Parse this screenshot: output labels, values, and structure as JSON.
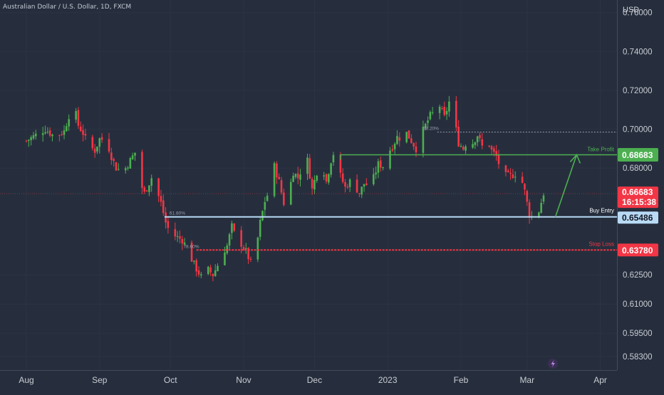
{
  "header": {
    "title": "Australian Dollar / U.S. Dollar, 1D, FXCM",
    "currency": "USD"
  },
  "chart_data": {
    "type": "candlestick",
    "yaxis": {
      "min": 0.576,
      "max": 0.7665,
      "ticks": [
        "0.76000",
        "0.74000",
        "0.72000",
        "0.70000",
        "0.68000",
        "0.62500",
        "0.61000",
        "0.59500",
        "0.58300"
      ]
    },
    "x_axis_labels": [
      {
        "label": "Aug",
        "day": 0
      },
      {
        "label": "Sep",
        "day": 31
      },
      {
        "label": "Oct",
        "day": 61
      },
      {
        "label": "Nov",
        "day": 92
      },
      {
        "label": "Dec",
        "day": 122
      },
      {
        "label": "2023",
        "day": 153
      },
      {
        "label": "Feb",
        "day": 184
      },
      {
        "label": "Mar",
        "day": 212
      },
      {
        "label": "Apr",
        "day": 243
      }
    ],
    "price_key_points": [
      [
        0,
        0.694
      ],
      [
        4,
        0.697
      ],
      [
        8,
        0.7
      ],
      [
        12,
        0.696
      ],
      [
        16,
        0.699
      ],
      [
        18,
        0.707
      ],
      [
        20,
        0.713
      ],
      [
        22,
        0.702
      ],
      [
        24,
        0.698
      ],
      [
        26,
        0.692
      ],
      [
        29,
        0.689
      ],
      [
        31,
        0.695
      ],
      [
        34,
        0.694
      ],
      [
        36,
        0.686
      ],
      [
        38,
        0.68
      ],
      [
        41,
        0.678
      ],
      [
        44,
        0.684
      ],
      [
        46,
        0.688
      ],
      [
        48,
        0.673
      ],
      [
        50,
        0.667
      ],
      [
        53,
        0.675
      ],
      [
        55,
        0.669
      ],
      [
        57,
        0.662
      ],
      [
        59,
        0.652
      ],
      [
        61,
        0.646
      ],
      [
        63,
        0.645
      ],
      [
        66,
        0.643
      ],
      [
        68,
        0.639
      ],
      [
        70,
        0.633
      ],
      [
        72,
        0.628
      ],
      [
        74,
        0.624
      ],
      [
        76,
        0.629
      ],
      [
        79,
        0.625
      ],
      [
        81,
        0.63
      ],
      [
        83,
        0.636
      ],
      [
        85,
        0.64
      ],
      [
        87,
        0.65
      ],
      [
        89,
        0.643
      ],
      [
        91,
        0.641
      ],
      [
        93,
        0.637
      ],
      [
        95,
        0.631
      ],
      [
        98,
        0.644
      ],
      [
        99,
        0.652
      ],
      [
        101,
        0.663
      ],
      [
        103,
        0.669
      ],
      [
        105,
        0.681
      ],
      [
        107,
        0.673
      ],
      [
        109,
        0.662
      ],
      [
        111,
        0.667
      ],
      [
        113,
        0.678
      ],
      [
        115,
        0.675
      ],
      [
        117,
        0.681
      ],
      [
        119,
        0.684
      ],
      [
        121,
        0.669
      ],
      [
        123,
        0.678
      ],
      [
        125,
        0.683
      ],
      [
        127,
        0.673
      ],
      [
        129,
        0.684
      ],
      [
        131,
        0.691
      ],
      [
        133,
        0.676
      ],
      [
        135,
        0.67
      ],
      [
        137,
        0.673
      ],
      [
        139,
        0.671
      ],
      [
        141,
        0.667
      ],
      [
        143,
        0.672
      ],
      [
        145,
        0.671
      ],
      [
        147,
        0.675
      ],
      [
        149,
        0.682
      ],
      [
        151,
        0.681
      ],
      [
        153,
        0.688
      ],
      [
        155,
        0.691
      ],
      [
        157,
        0.696
      ],
      [
        159,
        0.695
      ],
      [
        161,
        0.698
      ],
      [
        163,
        0.694
      ],
      [
        165,
        0.69
      ],
      [
        167,
        0.697
      ],
      [
        169,
        0.702
      ],
      [
        171,
        0.707
      ],
      [
        173,
        0.709
      ],
      [
        175,
        0.712
      ],
      [
        177,
        0.706
      ],
      [
        179,
        0.714
      ],
      [
        181,
        0.706
      ],
      [
        183,
        0.693
      ],
      [
        185,
        0.69
      ],
      [
        187,
        0.695
      ],
      [
        189,
        0.693
      ],
      [
        191,
        0.697
      ],
      [
        193,
        0.691
      ],
      [
        195,
        0.695
      ],
      [
        197,
        0.689
      ],
      [
        199,
        0.686
      ],
      [
        201,
        0.679
      ],
      [
        203,
        0.676
      ],
      [
        205,
        0.676
      ],
      [
        207,
        0.677
      ],
      [
        209,
        0.677
      ],
      [
        211,
        0.668
      ],
      [
        213,
        0.656
      ],
      [
        215,
        0.654
      ],
      [
        217,
        0.658
      ],
      [
        219,
        0.667
      ]
    ],
    "levels": [
      {
        "name": "Take Profit",
        "label": "Take Profit",
        "value": 0.68683,
        "badge": "0.68683",
        "color": "#4caf50"
      },
      {
        "name": "Buy Entry",
        "label": "Buy Entry",
        "value": 0.65486,
        "badge": "0.65486",
        "color": "#b8daf5"
      },
      {
        "name": "Stop Loss",
        "label": "Stop Loss",
        "value": 0.6378,
        "badge": "0.63780",
        "color": "#f23645"
      }
    ],
    "last_price": {
      "value": 0.66683,
      "label": "0.66683",
      "countdown": "16:15:38",
      "color": "#f23645"
    },
    "fib_labels": [
      "61.80%",
      "78.60%",
      "38.20%"
    ],
    "up_color": "#4caf50",
    "down_color": "#f23645"
  }
}
